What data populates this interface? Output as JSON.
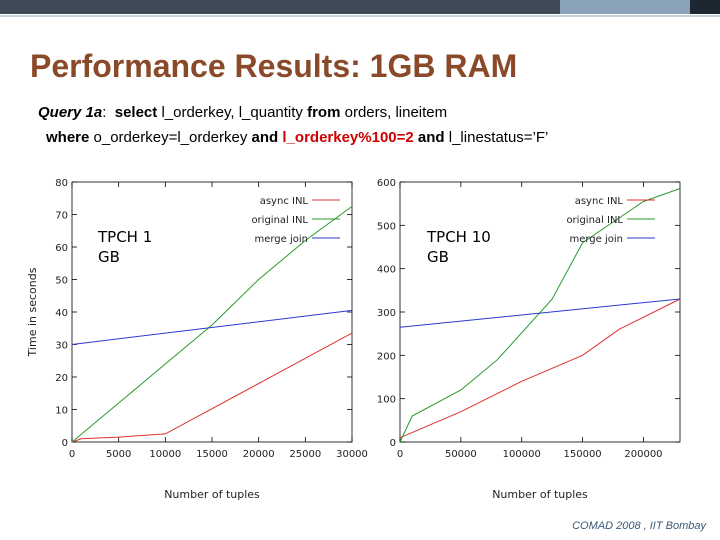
{
  "slide": {
    "title": "Performance Results: 1GB RAM",
    "query_label": "Query 1a",
    "query_colon": ":  ",
    "q_select": "select",
    "q_cols": " l_orderkey, l_quantity ",
    "q_from": "from",
    "q_tables": " orders, lineitem",
    "q_where": "where",
    "q_cond1": " o_orderkey=l_orderkey ",
    "q_and1": "and",
    "q_cond_red": "l_orderkey%100=2",
    "q_and2": "and",
    "q_cond3": " l_linestatus=’F’",
    "footer": "COMAD 2008 , IIT Bombay"
  },
  "colors": {
    "title": "#8a4a2a",
    "async": "#e03030",
    "original": "#2a9a2a",
    "merge": "#2a3ad0",
    "highlight": "#d00000"
  },
  "chart_data": [
    {
      "type": "line",
      "annotation": "TPCH 1 GB",
      "ylabel": "Time in seconds",
      "xlabel": "Number of tuples",
      "xlim": [
        0,
        30000
      ],
      "ylim": [
        0,
        80
      ],
      "xticks": [
        "0",
        "5000",
        "10000",
        "15000",
        "20000",
        "25000",
        "30000"
      ],
      "yticks": [
        "0",
        "10",
        "20",
        "30",
        "40",
        "50",
        "60",
        "70",
        "80"
      ],
      "legend_position": "top-right",
      "series": [
        {
          "name": "async INL",
          "color": "#e03030",
          "x": [
            0,
            1000,
            5000,
            10000,
            20000,
            30000
          ],
          "y": [
            0,
            1,
            1.5,
            2.5,
            18,
            33.5
          ]
        },
        {
          "name": "original INL",
          "color": "#2a9a2a",
          "x": [
            0,
            5000,
            10000,
            15000,
            20000,
            25000,
            30000
          ],
          "y": [
            0,
            12,
            24,
            36,
            50,
            62,
            72.5
          ]
        },
        {
          "name": "merge join",
          "color": "#2a3ad0",
          "x": [
            0,
            30000
          ],
          "y": [
            30,
            40.5
          ]
        }
      ]
    },
    {
      "type": "line",
      "annotation": "TPCH 10 GB",
      "ylabel": "",
      "xlabel": "Number of tuples",
      "xlim": [
        0,
        230000
      ],
      "ylim": [
        0,
        600
      ],
      "xticks": [
        "0",
        "50000",
        "100000",
        "150000",
        "200000"
      ],
      "yticks": [
        "0",
        "100",
        "200",
        "300",
        "400",
        "500",
        "600"
      ],
      "legend_position": "top-right",
      "series": [
        {
          "name": "async INL",
          "color": "#e03030",
          "x": [
            0,
            50000,
            100000,
            150000,
            180000,
            230000
          ],
          "y": [
            10,
            70,
            140,
            200,
            260,
            330
          ]
        },
        {
          "name": "original INL",
          "color": "#2a9a2a",
          "x": [
            0,
            10000,
            50000,
            80000,
            125000,
            150000,
            200000,
            230000
          ],
          "y": [
            0,
            60,
            120,
            190,
            330,
            460,
            555,
            585
          ]
        },
        {
          "name": "merge join",
          "color": "#2a3ad0",
          "x": [
            0,
            230000
          ],
          "y": [
            265,
            330
          ]
        }
      ]
    }
  ]
}
